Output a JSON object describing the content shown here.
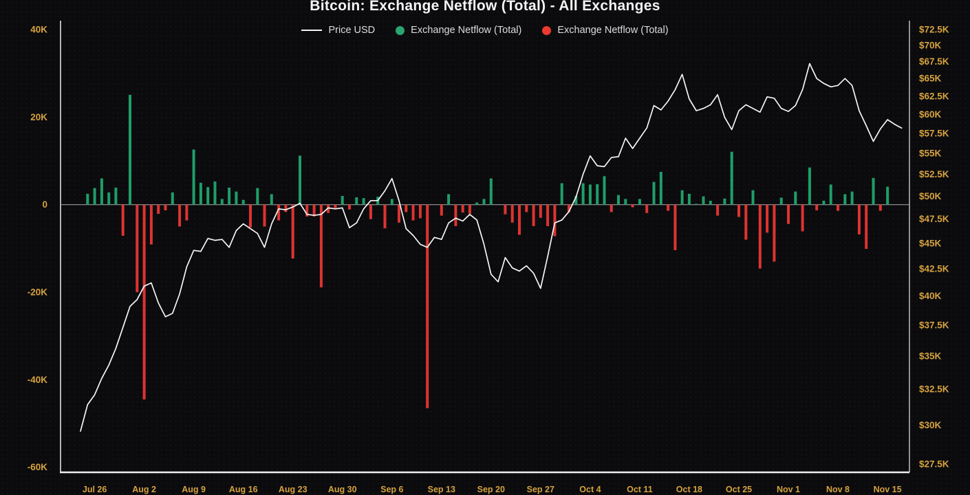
{
  "title": "Bitcoin: Exchange Netflow (Total) - All Exchanges",
  "legend": [
    {
      "label": "Price USD",
      "swatch": "line",
      "color": "#f5f5f5"
    },
    {
      "label": "Exchange Netflow (Total)",
      "swatch": "dot",
      "color": "#2aa471"
    },
    {
      "label": "Exchange Netflow (Total)",
      "swatch": "dot",
      "color": "#ec3a2f"
    }
  ],
  "colors": {
    "background": "#0b0b0e",
    "title_text": "#f4f4f4",
    "legend_text": "#dcdcdc",
    "axis_label": "#d6a23e",
    "price_line": "#f6f6f6",
    "netflow_positive": "#1f9e68",
    "netflow_negative": "#dd3430",
    "zero_line": "#999999",
    "plot_border": "#ededed"
  },
  "chart_data": {
    "type": "combo_bar_line",
    "title": "Bitcoin: Exchange Netflow (Total) - All Exchanges",
    "left_axis": {
      "scale": "linear",
      "tick_labels": [
        "40K",
        "20K",
        "0",
        "-20K",
        "-40K",
        "-60K"
      ],
      "tick_values_k": [
        40,
        20,
        0,
        -20,
        -40,
        -60
      ],
      "range_k": [
        -62,
        42
      ]
    },
    "right_axis": {
      "scale": "log",
      "tick_labels": [
        "$72.5K",
        "$70K",
        "$67.5K",
        "$65K",
        "$62.5K",
        "$60K",
        "$57.5K",
        "$55K",
        "$52.5K",
        "$50K",
        "$47.5K",
        "$45K",
        "$42.5K",
        "$40K",
        "$37.5K",
        "$35K",
        "$32.5K",
        "$30K",
        "$27.5K"
      ],
      "tick_values_k": [
        72.5,
        70,
        67.5,
        65,
        62.5,
        60,
        57.5,
        55,
        52.5,
        50,
        47.5,
        45,
        42.5,
        40,
        37.5,
        35,
        32.5,
        30,
        27.5
      ]
    },
    "x_axis": {
      "tick_labels": [
        "Jul 26",
        "Aug 2",
        "Aug 9",
        "Aug 16",
        "Aug 23",
        "Aug 30",
        "Sep 6",
        "Sep 13",
        "Sep 20",
        "Sep 27",
        "Oct 4",
        "Oct 11",
        "Oct 18",
        "Oct 25",
        "Nov 1",
        "Nov 8",
        "Nov 15"
      ],
      "tick_interval_days": 7
    },
    "series": [
      {
        "name": "Price USD",
        "type": "line",
        "axis": "right",
        "units": "USD thousands",
        "values": [
          29.6,
          31.4,
          32.1,
          33.3,
          34.3,
          35.6,
          37.3,
          39.1,
          39.7,
          40.9,
          41.2,
          39.4,
          38.2,
          38.5,
          40.2,
          42.7,
          44.3,
          44.2,
          45.5,
          45.3,
          45.4,
          44.6,
          46.3,
          47.0,
          46.5,
          46.0,
          44.6,
          47.0,
          48.6,
          48.5,
          48.8,
          49.2,
          48.0,
          47.9,
          48.0,
          48.7,
          48.6,
          48.7,
          46.6,
          47.1,
          48.6,
          49.5,
          49.5,
          50.6,
          52.0,
          49.5,
          46.5,
          45.8,
          44.9,
          44.6,
          45.6,
          45.4,
          47.1,
          47.6,
          47.3,
          48.0,
          47.4,
          44.9,
          42.0,
          41.3,
          43.6,
          42.6,
          42.3,
          42.8,
          42.1,
          40.7,
          43.7,
          47.1,
          47.4,
          48.3,
          49.9,
          52.5,
          54.7,
          53.5,
          53.4,
          54.5,
          54.6,
          56.9,
          55.6,
          56.9,
          58.2,
          61.2,
          60.6,
          61.8,
          63.4,
          65.6,
          62.1,
          60.5,
          60.8,
          61.3,
          62.7,
          59.6,
          58.0,
          60.5,
          61.3,
          60.8,
          60.3,
          62.4,
          62.2,
          60.8,
          60.4,
          61.2,
          63.4,
          67.2,
          65.0,
          64.3,
          63.8,
          64.0,
          65.0,
          64.0,
          60.5,
          58.5,
          56.5,
          58.1,
          59.3,
          58.7,
          58.2
        ]
      },
      {
        "name": "Exchange Netflow (Total)",
        "type": "bar",
        "axis": "left",
        "units": "thousands",
        "values": [
          0,
          2.5,
          3.8,
          6.0,
          2.8,
          3.9,
          -7.1,
          25.1,
          -20.0,
          -44.5,
          -9.1,
          -2.1,
          -1.3,
          2.8,
          -5.0,
          -3.6,
          12.6,
          5.0,
          4.0,
          5.3,
          1.3,
          3.9,
          3.0,
          1.1,
          -5.2,
          3.8,
          -5.0,
          2.4,
          -3.6,
          -1.7,
          -12.3,
          11.2,
          -2.7,
          -2.7,
          -18.9,
          -1.9,
          -0.8,
          2.0,
          -1.1,
          1.7,
          1.5,
          -3.3,
          1.8,
          -5.4,
          1.3,
          -4.1,
          -1.7,
          -3.6,
          -3.1,
          -46.5,
          0,
          -2.5,
          2.4,
          -4.9,
          -1.8,
          -2.1,
          0.5,
          1.3,
          6.0,
          0,
          -2.2,
          -4.1,
          -6.9,
          -1.7,
          -4.9,
          -3.0,
          -4.9,
          -7.2,
          4.9,
          -1.7,
          2.0,
          4.9,
          4.6,
          4.7,
          6.5,
          -1.7,
          2.2,
          1.3,
          -0.6,
          1.3,
          -1.9,
          5.2,
          7.5,
          -1.4,
          -10.4,
          3.3,
          2.5,
          0.2,
          1.9,
          0.9,
          -2.5,
          1.4,
          12.1,
          -2.8,
          -8.0,
          3.3,
          -14.6,
          -6.4,
          -13.0,
          1.6,
          -4.4,
          3.0,
          -6.1,
          8.5,
          -1.3,
          0.9,
          4.6,
          -1.4,
          2.4,
          3.0,
          -6.8,
          -10.1,
          6.1,
          -1.4,
          4.1,
          0,
          0
        ]
      }
    ]
  }
}
